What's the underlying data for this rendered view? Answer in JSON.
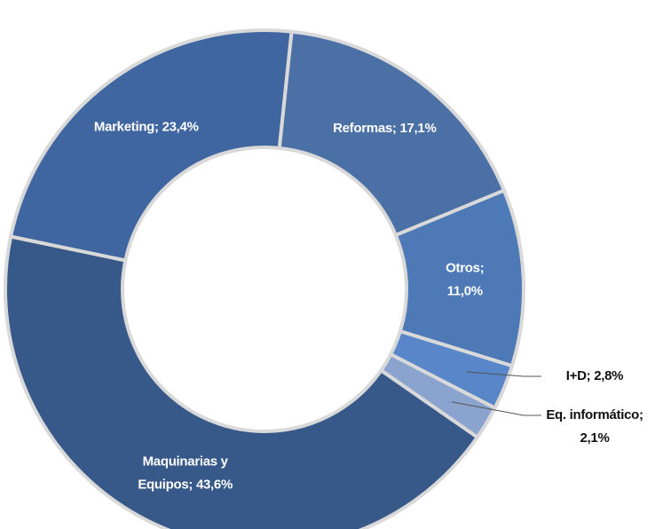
{
  "chart_data": {
    "type": "pie",
    "values": [
      17.1,
      11.0,
      2.8,
      2.1,
      43.6,
      23.4
    ],
    "value_labels": [
      "Reformas; 17,1%",
      "Otros;\n11,0%",
      "I+D; 2,8%",
      "Eq. informático;\n2,1%",
      "Maquinarias y\nEquipos; 43,6%",
      "Marketing; 23,4%"
    ],
    "colors": [
      "#4a70a6",
      "#4d7ab6",
      "#5886c8",
      "#8ba3cf",
      "#37598a",
      "#3f66a0"
    ],
    "donut": true
  }
}
